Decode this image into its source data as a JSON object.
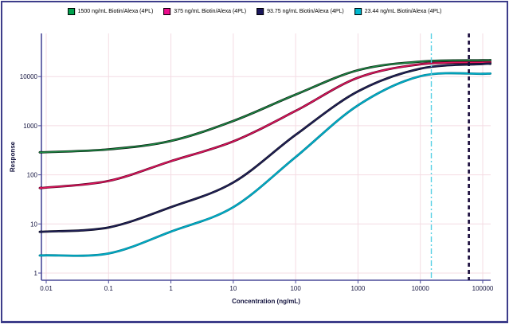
{
  "chart_data": {
    "type": "line",
    "title": "",
    "xlabel": "Concentration (ng/mL)",
    "ylabel": "Response",
    "x_scale": "log",
    "y_scale": "log",
    "xlim": [
      0.0085,
      130000
    ],
    "ylim": [
      0.8,
      75000
    ],
    "grid": true,
    "legend_position": "top",
    "x_tick_labels": [
      "0.01",
      "0.1",
      "1",
      "10",
      "100",
      "1000",
      "10000",
      "100000"
    ],
    "x_ticks_log": [
      -2,
      -1,
      0,
      1,
      2,
      3,
      4,
      5
    ],
    "y_tick_labels": [
      "1",
      "10",
      "100",
      "1000",
      "10000"
    ],
    "y_ticks_log": [
      0,
      1,
      2,
      3,
      4
    ],
    "x": [
      0.01,
      0.1,
      1,
      10,
      100,
      1000,
      10000,
      100000
    ],
    "series": [
      {
        "name": "1500 ng/mL Biotin/Alexa (4PL)",
        "swatch_color": "#00a24d",
        "line_color": "#1e8c46",
        "edge_color": "#04190c",
        "values": [
          290,
          330,
          490,
          1250,
          4300,
          13500,
          20200,
          21500
        ]
      },
      {
        "name": "375 ng/mL Biotin/Alexa (4PL)",
        "swatch_color": "#ec0c8c",
        "line_color": "#e0155e",
        "edge_color": "#5a0022",
        "values": [
          55,
          75,
          190,
          480,
          2000,
          9500,
          17800,
          19500
        ]
      },
      {
        "name": "93.75 ng/mL Biotin/Alexa (4PL)",
        "swatch_color": "#1a175c",
        "line_color": "#23235c",
        "edge_color": "#060618",
        "values": [
          7,
          8.5,
          22,
          70,
          650,
          5000,
          14500,
          18000
        ]
      },
      {
        "name": "23.44 ng/mL Biotin/Alexa (4PL)",
        "swatch_color": "#00b7ce",
        "line_color": "#00afc9",
        "edge_color": "#00788c",
        "values": [
          2.3,
          2.5,
          7,
          22,
          230,
          2600,
          10200,
          11400
        ]
      }
    ],
    "reference_lines": [
      {
        "name": "cyan-dashdot-marker",
        "x": 15000,
        "color": "#57d0e5",
        "width": 1.4,
        "dash": "7 3 2 3"
      },
      {
        "name": "dark-dashed-marker",
        "x": 60000,
        "color": "#17093a",
        "width": 2.6,
        "dash": "5 4"
      }
    ],
    "colors": {
      "axis": "#4a4a99",
      "grid": "#f4dce3",
      "tick_text": "#14143f",
      "frame": "#3d3d8a",
      "background": "#ffffff"
    }
  }
}
